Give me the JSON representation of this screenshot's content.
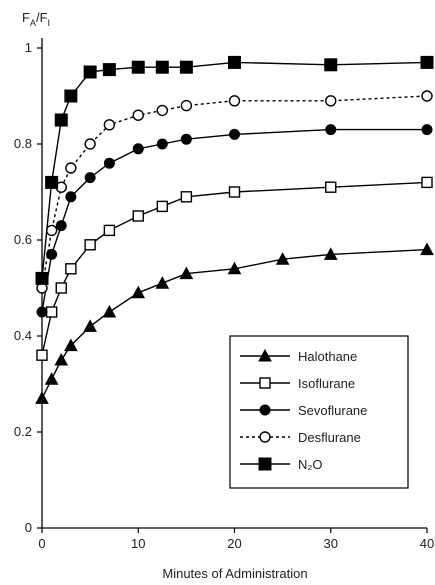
{
  "chart_data": {
    "type": "line",
    "title": "",
    "ylabel": {
      "main": "F",
      "sub1": "A",
      "slash": "/F",
      "sub2": "I"
    },
    "xlabel": "Minutes of Administration",
    "xlim": [
      0,
      40
    ],
    "ylim": [
      0,
      1
    ],
    "xticks": [
      0,
      10,
      20,
      30,
      40
    ],
    "yticks": [
      0,
      0.2,
      0.4,
      0.6,
      0.8,
      1
    ],
    "ytick_labels": [
      "0",
      "0.2",
      "0.4",
      "0.6",
      "0.8",
      "1"
    ],
    "grid": false,
    "legend_position": "lower-right",
    "series": [
      {
        "name": "Halothane",
        "marker": "triangle",
        "line": "solid",
        "color": "#000000",
        "points": [
          [
            0,
            0.27
          ],
          [
            1,
            0.31
          ],
          [
            2,
            0.35
          ],
          [
            3,
            0.38
          ],
          [
            5,
            0.42
          ],
          [
            7,
            0.45
          ],
          [
            10,
            0.49
          ],
          [
            12.5,
            0.51
          ],
          [
            15,
            0.53
          ],
          [
            20,
            0.54
          ],
          [
            25,
            0.56
          ],
          [
            30,
            0.57
          ],
          [
            40,
            0.58
          ]
        ]
      },
      {
        "name": "Isoflurane",
        "marker": "square-open",
        "line": "solid",
        "color": "#000000",
        "points": [
          [
            0,
            0.36
          ],
          [
            1,
            0.45
          ],
          [
            2,
            0.5
          ],
          [
            3,
            0.54
          ],
          [
            5,
            0.59
          ],
          [
            7,
            0.62
          ],
          [
            10,
            0.65
          ],
          [
            12.5,
            0.67
          ],
          [
            15,
            0.69
          ],
          [
            20,
            0.7
          ],
          [
            30,
            0.71
          ],
          [
            40,
            0.72
          ]
        ]
      },
      {
        "name": "Sevoflurane",
        "marker": "circle-filled",
        "line": "solid",
        "color": "#000000",
        "points": [
          [
            0,
            0.45
          ],
          [
            1,
            0.57
          ],
          [
            2,
            0.63
          ],
          [
            3,
            0.69
          ],
          [
            5,
            0.73
          ],
          [
            7,
            0.76
          ],
          [
            10,
            0.79
          ],
          [
            12.5,
            0.8
          ],
          [
            15,
            0.81
          ],
          [
            20,
            0.82
          ],
          [
            30,
            0.83
          ],
          [
            40,
            0.83
          ]
        ]
      },
      {
        "name": "Desflurane",
        "marker": "circle-open",
        "line": "dashed",
        "color": "#000000",
        "points": [
          [
            0,
            0.5
          ],
          [
            1,
            0.62
          ],
          [
            2,
            0.71
          ],
          [
            3,
            0.75
          ],
          [
            5,
            0.8
          ],
          [
            7,
            0.84
          ],
          [
            10,
            0.86
          ],
          [
            12.5,
            0.87
          ],
          [
            15,
            0.88
          ],
          [
            20,
            0.89
          ],
          [
            30,
            0.89
          ],
          [
            40,
            0.9
          ]
        ]
      },
      {
        "name": "N₂O",
        "marker": "square-filled",
        "line": "solid",
        "color": "#000000",
        "points": [
          [
            0,
            0.52
          ],
          [
            1,
            0.72
          ],
          [
            2,
            0.85
          ],
          [
            3,
            0.9
          ],
          [
            5,
            0.95
          ],
          [
            7,
            0.955
          ],
          [
            10,
            0.96
          ],
          [
            12.5,
            0.96
          ],
          [
            15,
            0.96
          ],
          [
            20,
            0.97
          ],
          [
            30,
            0.965
          ],
          [
            40,
            0.97
          ]
        ]
      }
    ]
  }
}
